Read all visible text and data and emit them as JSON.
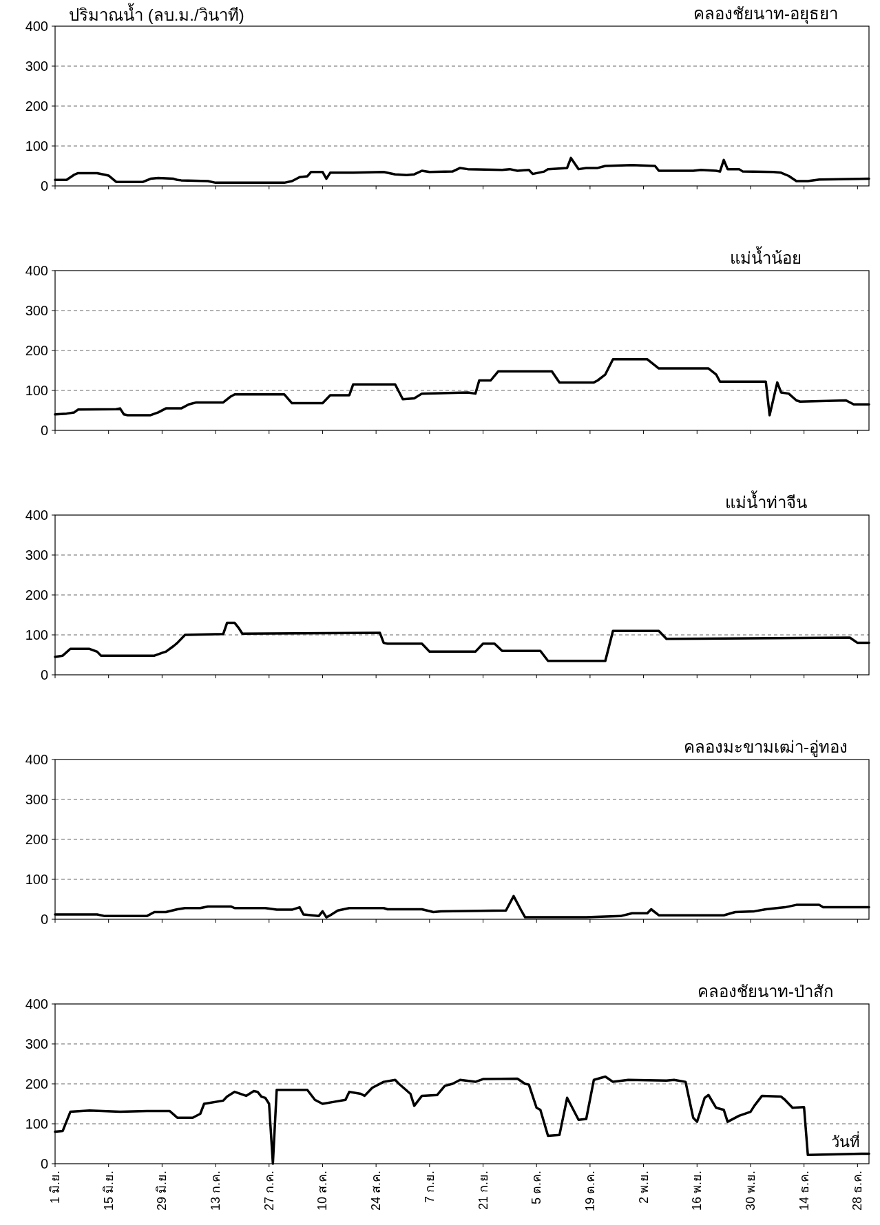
{
  "chart_data": [
    {
      "type": "line",
      "title": "คลองชัยนาท-อยุธยา",
      "ylabel": "ปริมาณน้ำ (ลบ.ม./วินาที)",
      "xlim": [
        "--06-01",
        "--12-31"
      ],
      "ylim": [
        0,
        400
      ],
      "yticks": [
        0,
        100,
        200,
        300,
        400
      ],
      "grid": "y",
      "tick_labels": "y",
      "xticks": [
        {
          "value": "--06-01",
          "label": null
        },
        {
          "value": "--06-15",
          "label": null
        },
        {
          "value": "--06-29",
          "label": null
        },
        {
          "value": "--07-13",
          "label": null
        },
        {
          "value": "--07-27",
          "label": null
        },
        {
          "value": "--08-10",
          "label": null
        },
        {
          "value": "--08-24",
          "label": null
        },
        {
          "value": "--09-07",
          "label": null
        },
        {
          "value": "--09-21",
          "label": null
        },
        {
          "value": "--10-05",
          "label": null
        },
        {
          "value": "--10-19",
          "label": null
        },
        {
          "value": "--11-02",
          "label": null
        },
        {
          "value": "--11-16",
          "label": null
        },
        {
          "value": "--11-30",
          "label": null
        },
        {
          "value": "--12-14",
          "label": null
        },
        {
          "value": "--12-28",
          "label": null
        }
      ],
      "x": [
        "--06-01",
        "--06-04",
        "--06-06",
        "--06-07",
        "--06-12",
        "--06-14",
        "--06-15",
        "--06-17",
        "--06-24",
        "--06-26",
        "--06-28",
        "--07-02",
        "--07-03",
        "--07-04",
        "--07-11",
        "--07-13",
        "--07-31",
        "--08-02",
        "--08-04",
        "--08-06",
        "--08-07",
        "--08-10",
        "--08-11",
        "--08-12",
        "--08-18",
        "--08-26",
        "--08-29",
        "--09-01",
        "--09-03",
        "--09-05",
        "--09-07",
        "--09-13",
        "--09-15",
        "--09-17",
        "--09-26",
        "--09-28",
        "--09-30",
        "--10-03",
        "--10-04",
        "--10-07",
        "--10-08",
        "--10-13",
        "--10-14",
        "--10-16",
        "--10-18",
        "--10-21",
        "--10-23",
        "--10-30",
        "--11-05",
        "--11-06",
        "--11-15",
        "--11-17",
        "--11-21",
        "--11-22",
        "--11-23",
        "--11-24",
        "--11-27",
        "--11-28",
        "--12-06",
        "--12-08",
        "--12-10",
        "--12-12",
        "--12-15",
        "--12-18",
        "--12-31"
      ],
      "series": [
        {
          "color": "#000000",
          "values": [
            15,
            15,
            28,
            32,
            32,
            28,
            26,
            10,
            10,
            18,
            20,
            18,
            15,
            14,
            12,
            8,
            8,
            12,
            22,
            24,
            35,
            35,
            18,
            33,
            33,
            35,
            29,
            27,
            29,
            38,
            35,
            36,
            45,
            42,
            40,
            42,
            38,
            40,
            30,
            36,
            42,
            45,
            70,
            42,
            45,
            45,
            50,
            52,
            50,
            38,
            38,
            40,
            38,
            36,
            65,
            42,
            42,
            36,
            35,
            33,
            25,
            12,
            12,
            16,
            18
          ]
        }
      ]
    },
    {
      "type": "line",
      "title": "แม่น้ำน้อย",
      "xlim": [
        "--06-01",
        "--12-31"
      ],
      "ylim": [
        0,
        400
      ],
      "yticks": [
        0,
        100,
        200,
        300,
        400
      ],
      "grid": "y",
      "tick_labels": "y",
      "xticks": [
        {
          "value": "--06-01",
          "label": null
        },
        {
          "value": "--06-15",
          "label": null
        },
        {
          "value": "--06-29",
          "label": null
        },
        {
          "value": "--07-13",
          "label": null
        },
        {
          "value": "--07-27",
          "label": null
        },
        {
          "value": "--08-10",
          "label": null
        },
        {
          "value": "--08-24",
          "label": null
        },
        {
          "value": "--09-07",
          "label": null
        },
        {
          "value": "--09-21",
          "label": null
        },
        {
          "value": "--10-05",
          "label": null
        },
        {
          "value": "--10-19",
          "label": null
        },
        {
          "value": "--11-02",
          "label": null
        },
        {
          "value": "--11-16",
          "label": null
        },
        {
          "value": "--11-30",
          "label": null
        },
        {
          "value": "--12-14",
          "label": null
        },
        {
          "value": "--12-28",
          "label": null
        }
      ],
      "x": [
        "--06-01",
        "--06-04",
        "--06-06",
        "--06-07",
        "--06-17",
        "--06-18",
        "--06-19",
        "--06-20",
        "--06-26",
        "--06-28",
        "--06-30",
        "--07-04",
        "--07-06",
        "--07-08",
        "--07-15",
        "--07-17",
        "--07-18",
        "--07-31",
        "--08-02",
        "--08-10",
        "--08-12",
        "--08-17",
        "--08-18",
        "--08-29",
        "--08-31",
        "--09-03",
        "--09-05",
        "--09-17",
        "--09-19",
        "--09-20",
        "--09-23",
        "--09-25",
        "--10-09",
        "--10-11",
        "--10-20",
        "--10-21",
        "--10-23",
        "--10-25",
        "--11-03",
        "--11-06",
        "--11-19",
        "--11-21",
        "--11-22",
        "--12-03",
        "--12-04",
        "--12-05",
        "--12-07",
        "--12-08",
        "--12-10",
        "--12-12",
        "--12-13",
        "--12-25",
        "--12-27",
        "--12-31"
      ],
      "series": [
        {
          "color": "#000000",
          "values": [
            40,
            42,
            45,
            52,
            53,
            55,
            40,
            38,
            38,
            45,
            55,
            55,
            65,
            70,
            70,
            85,
            90,
            90,
            68,
            68,
            88,
            88,
            115,
            115,
            78,
            80,
            92,
            95,
            92,
            125,
            125,
            148,
            148,
            120,
            120,
            125,
            140,
            178,
            178,
            155,
            155,
            140,
            122,
            122,
            122,
            38,
            120,
            95,
            92,
            75,
            72,
            75,
            65,
            65
          ]
        }
      ]
    },
    {
      "type": "line",
      "title": "แม่น้ำท่าจีน",
      "xlim": [
        "--06-01",
        "--12-31"
      ],
      "ylim": [
        0,
        400
      ],
      "yticks": [
        0,
        100,
        200,
        300,
        400
      ],
      "grid": "y",
      "tick_labels": "y",
      "xticks": [
        {
          "value": "--06-01",
          "label": null
        },
        {
          "value": "--06-15",
          "label": null
        },
        {
          "value": "--06-29",
          "label": null
        },
        {
          "value": "--07-13",
          "label": null
        },
        {
          "value": "--07-27",
          "label": null
        },
        {
          "value": "--08-10",
          "label": null
        },
        {
          "value": "--08-24",
          "label": null
        },
        {
          "value": "--09-07",
          "label": null
        },
        {
          "value": "--09-21",
          "label": null
        },
        {
          "value": "--10-05",
          "label": null
        },
        {
          "value": "--10-19",
          "label": null
        },
        {
          "value": "--11-02",
          "label": null
        },
        {
          "value": "--11-16",
          "label": null
        },
        {
          "value": "--11-30",
          "label": null
        },
        {
          "value": "--12-14",
          "label": null
        },
        {
          "value": "--12-28",
          "label": null
        }
      ],
      "x": [
        "--06-01",
        "--06-03",
        "--06-05",
        "--06-10",
        "--06-12",
        "--06-13",
        "--06-27",
        "--06-29",
        "--06-30",
        "--07-02",
        "--07-03",
        "--07-05",
        "--07-15",
        "--07-16",
        "--07-18",
        "--07-19",
        "--07-20",
        "--08-25",
        "--08-26",
        "--08-27",
        "--09-05",
        "--09-07",
        "--09-19",
        "--09-21",
        "--09-24",
        "--09-26",
        "--10-06",
        "--10-08",
        "--10-23",
        "--10-25",
        "--11-06",
        "--11-08",
        "--12-26",
        "--12-28",
        "--12-31"
      ],
      "series": [
        {
          "color": "#000000",
          "values": [
            45,
            48,
            65,
            65,
            58,
            48,
            48,
            55,
            58,
            72,
            80,
            100,
            102,
            130,
            130,
            118,
            103,
            105,
            80,
            78,
            78,
            58,
            58,
            78,
            78,
            60,
            60,
            35,
            35,
            110,
            110,
            90,
            93,
            80,
            80
          ]
        }
      ]
    },
    {
      "type": "line",
      "title": "คลองมะขามเฒ่า-อู่ทอง",
      "xlim": [
        "--06-01",
        "--12-31"
      ],
      "ylim": [
        0,
        400
      ],
      "yticks": [
        0,
        100,
        200,
        300,
        400
      ],
      "grid": "y",
      "tick_labels": "y",
      "xticks": [
        {
          "value": "--06-01",
          "label": null
        },
        {
          "value": "--06-15",
          "label": null
        },
        {
          "value": "--06-29",
          "label": null
        },
        {
          "value": "--07-13",
          "label": null
        },
        {
          "value": "--07-27",
          "label": null
        },
        {
          "value": "--08-10",
          "label": null
        },
        {
          "value": "--08-24",
          "label": null
        },
        {
          "value": "--09-07",
          "label": null
        },
        {
          "value": "--09-21",
          "label": null
        },
        {
          "value": "--10-05",
          "label": null
        },
        {
          "value": "--10-19",
          "label": null
        },
        {
          "value": "--11-02",
          "label": null
        },
        {
          "value": "--11-16",
          "label": null
        },
        {
          "value": "--11-30",
          "label": null
        },
        {
          "value": "--12-14",
          "label": null
        },
        {
          "value": "--12-28",
          "label": null
        }
      ],
      "x": [
        "--06-01",
        "--06-12",
        "--06-14",
        "--06-25",
        "--06-27",
        "--06-30",
        "--07-03",
        "--07-05",
        "--07-09",
        "--07-11",
        "--07-17",
        "--07-18",
        "--07-26",
        "--07-29",
        "--08-02",
        "--08-04",
        "--08-05",
        "--08-09",
        "--08-10",
        "--08-11",
        "--08-12",
        "--08-14",
        "--08-17",
        "--08-26",
        "--08-27",
        "--09-05",
        "--09-08",
        "--09-10",
        "--09-27",
        "--09-29",
        "--10-01",
        "--10-02",
        "--10-18",
        "--10-27",
        "--10-30",
        "--11-03",
        "--11-04",
        "--11-06",
        "--11-23",
        "--11-26",
        "--12-01",
        "--12-04",
        "--12-09",
        "--12-12",
        "--12-18",
        "--12-19",
        "--12-31"
      ],
      "series": [
        {
          "color": "#000000",
          "values": [
            12,
            12,
            8,
            8,
            18,
            18,
            25,
            28,
            28,
            32,
            32,
            28,
            28,
            24,
            24,
            30,
            12,
            8,
            20,
            5,
            10,
            22,
            28,
            28,
            25,
            25,
            18,
            20,
            22,
            58,
            22,
            5,
            5,
            8,
            15,
            15,
            25,
            10,
            10,
            18,
            20,
            25,
            30,
            36,
            36,
            30,
            30
          ]
        }
      ]
    },
    {
      "type": "line",
      "title": "คลองชัยนาท-ป่าสัก",
      "xlabel": "วันที่",
      "xlim": [
        "--06-01",
        "--12-31"
      ],
      "ylim": [
        0,
        400
      ],
      "yticks": [
        0,
        100,
        200,
        300,
        400
      ],
      "grid": "y",
      "xticks": [
        {
          "value": "--06-01",
          "label": "1 มิ.ย."
        },
        {
          "value": "--06-15",
          "label": "15 มิ.ย."
        },
        {
          "value": "--06-29",
          "label": "29 มิ.ย."
        },
        {
          "value": "--07-13",
          "label": "13 ก.ค."
        },
        {
          "value": "--07-27",
          "label": "27 ก.ค."
        },
        {
          "value": "--08-10",
          "label": "10 ส.ค."
        },
        {
          "value": "--08-24",
          "label": "24 ส.ค."
        },
        {
          "value": "--09-07",
          "label": "7 ก.ย."
        },
        {
          "value": "--09-21",
          "label": "21 ก.ย."
        },
        {
          "value": "--10-05",
          "label": "5 ต.ค."
        },
        {
          "value": "--10-19",
          "label": "19 ต.ค."
        },
        {
          "value": "--11-02",
          "label": "2 พ.ย."
        },
        {
          "value": "--11-16",
          "label": "16 พ.ย."
        },
        {
          "value": "--11-30",
          "label": "30 พ.ย."
        },
        {
          "value": "--12-14",
          "label": "14 ธ.ค."
        },
        {
          "value": "--12-28",
          "label": "28 ธ.ค."
        }
      ],
      "x": [
        "--06-01",
        "--06-03",
        "--06-05",
        "--06-10",
        "--06-18",
        "--06-25",
        "--07-01",
        "--07-03",
        "--07-07",
        "--07-09",
        "--07-10",
        "--07-15",
        "--07-16",
        "--07-18",
        "--07-21",
        "--07-23",
        "--07-24",
        "--07-25",
        "--07-26",
        "--07-27",
        "--07-28",
        "--07-29",
        "--08-06",
        "--08-08",
        "--08-10",
        "--08-13",
        "--08-16",
        "--08-17",
        "--08-20",
        "--08-21",
        "--08-23",
        "--08-26",
        "--08-29",
        "--08-30",
        "--09-02",
        "--09-03",
        "--09-05",
        "--09-09",
        "--09-11",
        "--09-13",
        "--09-15",
        "--09-19",
        "--09-21",
        "--09-30",
        "--10-02",
        "--10-03",
        "--10-05",
        "--10-06",
        "--10-08",
        "--10-11",
        "--10-13",
        "--10-16",
        "--10-18",
        "--10-20",
        "--10-23",
        "--10-25",
        "--10-29",
        "--11-08",
        "--11-10",
        "--11-13",
        "--11-15",
        "--11-16",
        "--11-18",
        "--11-19",
        "--11-21",
        "--11-23",
        "--11-24",
        "--11-27",
        "--11-30",
        "--12-01",
        "--12-03",
        "--12-08",
        "--12-09",
        "--12-11",
        "--12-14",
        "--12-15",
        "--12-29",
        "--12-31"
      ],
      "series": [
        {
          "color": "#000000",
          "values": [
            80,
            82,
            130,
            133,
            130,
            132,
            132,
            115,
            115,
            125,
            150,
            158,
            168,
            180,
            170,
            182,
            180,
            168,
            165,
            150,
            0,
            185,
            185,
            160,
            150,
            155,
            160,
            180,
            175,
            170,
            190,
            205,
            210,
            200,
            175,
            145,
            170,
            172,
            195,
            200,
            210,
            205,
            212,
            213,
            200,
            198,
            140,
            135,
            70,
            72,
            165,
            110,
            112,
            210,
            218,
            205,
            210,
            208,
            210,
            205,
            115,
            105,
            165,
            172,
            140,
            135,
            105,
            120,
            130,
            145,
            170,
            168,
            160,
            140,
            142,
            22,
            25,
            25
          ]
        }
      ]
    }
  ]
}
